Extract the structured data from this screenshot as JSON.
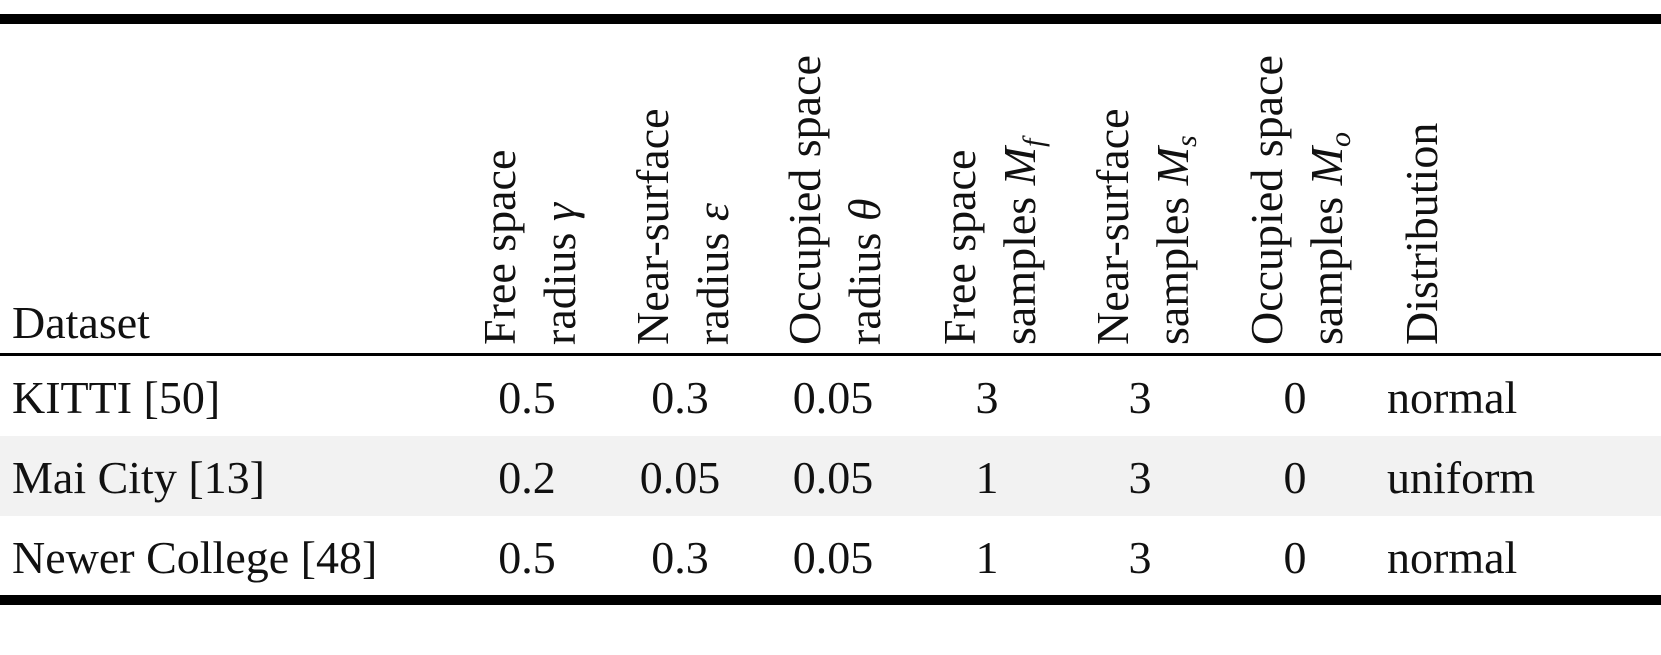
{
  "table": {
    "columns": [
      {
        "name": "Dataset"
      },
      {
        "line1": "Free space",
        "line2": "radius",
        "symbol": "γ"
      },
      {
        "line1": "Near-surface",
        "line2": "radius",
        "symbol": "ε"
      },
      {
        "line1": "Occupied space",
        "line2": "radius",
        "symbol": "θ"
      },
      {
        "line1": "Free space",
        "line2": "samples",
        "symbol": "M",
        "subscript": "f"
      },
      {
        "line1": "Near-surface",
        "line2": "samples",
        "symbol": "M",
        "subscript": "s"
      },
      {
        "line1": "Occupied space",
        "line2": "samples",
        "symbol": "M",
        "subscript": "o"
      },
      {
        "name": "Distribution"
      }
    ],
    "rows": [
      [
        "KITTI [50]",
        "0.5",
        "0.3",
        "0.05",
        "3",
        "3",
        "0",
        "normal"
      ],
      [
        "Mai City [13]",
        "0.2",
        "0.05",
        "0.05",
        "1",
        "3",
        "0",
        "uniform"
      ],
      [
        "Newer College [48]",
        "0.5",
        "0.3",
        "0.05",
        "1",
        "3",
        "0",
        "normal"
      ]
    ]
  }
}
